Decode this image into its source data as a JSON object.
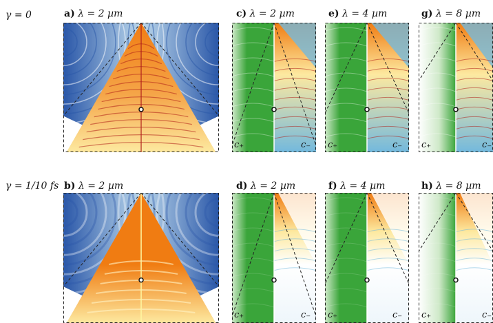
{
  "rows": [
    {
      "gamma_label": "γ = 0"
    },
    {
      "gamma_label": "γ = 1/10 fs"
    }
  ],
  "panels": [
    {
      "id": "a",
      "letter": "a)",
      "lambda_text": "λ = 2 µm",
      "kind": "wide",
      "damped": false
    },
    {
      "id": "c",
      "letter": "c)",
      "lambda_text": "λ = 2 µm",
      "kind": "split",
      "damped": false,
      "c_plus": "c₊",
      "c_minus": "c₋"
    },
    {
      "id": "e",
      "letter": "e)",
      "lambda_text": "λ = 4 µm",
      "kind": "split",
      "damped": false,
      "c_plus": "c₊",
      "c_minus": "c₋"
    },
    {
      "id": "g",
      "letter": "g)",
      "lambda_text": "λ = 8 µm",
      "kind": "split",
      "damped": false,
      "c_plus": "c₊",
      "c_minus": "c₋"
    },
    {
      "id": "b",
      "letter": "b)",
      "lambda_text": "λ = 2 µm",
      "kind": "wide",
      "damped": true
    },
    {
      "id": "d",
      "letter": "d)",
      "lambda_text": "λ = 2 µm",
      "kind": "split",
      "damped": true,
      "c_plus": "c₊",
      "c_minus": "c₋"
    },
    {
      "id": "f",
      "letter": "f)",
      "lambda_text": "λ = 4 µm",
      "kind": "split",
      "damped": true,
      "c_plus": "c₊",
      "c_minus": "c₋"
    },
    {
      "id": "h",
      "letter": "h)",
      "lambda_text": "λ = 8 µm",
      "kind": "split",
      "damped": true,
      "c_plus": "c₊",
      "c_minus": "c₋"
    }
  ],
  "colors": {
    "blue_dark": "#2a57a8",
    "blue_light": "#bcd8ec",
    "orange": "#f07c12",
    "yellow": "#fde9a0",
    "red": "#b0201a",
    "green": "#3aa53a",
    "green_light": "#cfe9c9",
    "cyan": "#73b9dd",
    "dash": "#222222"
  }
}
